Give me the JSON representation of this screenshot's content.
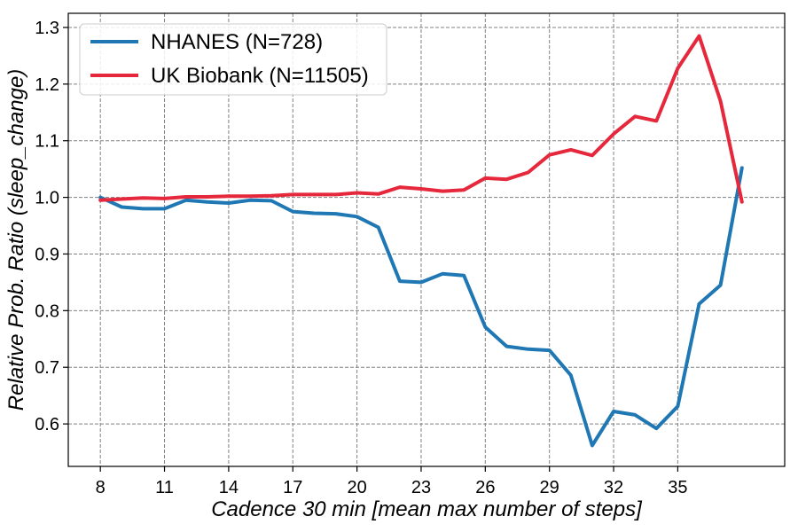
{
  "chart_data": {
    "type": "line",
    "xlabel": "Cadence 30 min [mean max number of steps]",
    "ylabel": "Relative Prob. Ratio (sleep_change)",
    "xlim": [
      6.5,
      40
    ],
    "ylim": [
      0.525,
      1.325
    ],
    "x_ticks": [
      8,
      11,
      14,
      17,
      20,
      23,
      26,
      29,
      32,
      35
    ],
    "y_ticks": [
      0.6,
      0.7,
      0.8,
      0.9,
      1.0,
      1.1,
      1.2,
      1.3
    ],
    "y_tick_labels": [
      "0.6",
      "0.7",
      "0.8",
      "0.9",
      "1.0",
      "1.1",
      "1.2",
      "1.3"
    ],
    "grid": true,
    "legend_position": "top-left",
    "series": [
      {
        "name": "NHANES (N=728)",
        "color": "#1f77b4",
        "x": [
          8,
          9,
          10,
          11,
          12,
          13,
          14,
          15,
          16,
          17,
          18,
          19,
          20,
          21,
          22,
          23,
          24,
          25,
          26,
          27,
          28,
          29,
          30,
          31,
          32,
          33,
          34,
          35,
          36,
          37,
          38
        ],
        "y": [
          1.0,
          0.983,
          0.98,
          0.98,
          0.995,
          0.992,
          0.99,
          0.995,
          0.994,
          0.975,
          0.972,
          0.971,
          0.966,
          0.947,
          0.852,
          0.85,
          0.865,
          0.862,
          0.771,
          0.737,
          0.732,
          0.73,
          0.686,
          0.562,
          0.622,
          0.616,
          0.592,
          0.631,
          0.812,
          0.845,
          1.052
        ]
      },
      {
        "name": "UK Biobank (N=11505)",
        "color": "#e6283c",
        "x": [
          8,
          9,
          10,
          11,
          12,
          13,
          14,
          15,
          16,
          17,
          18,
          19,
          20,
          21,
          22,
          23,
          24,
          25,
          26,
          27,
          28,
          29,
          30,
          31,
          32,
          33,
          34,
          35,
          36,
          37,
          38
        ],
        "y": [
          0.995,
          0.997,
          0.999,
          0.998,
          1.001,
          1.001,
          1.002,
          1.002,
          1.003,
          1.005,
          1.005,
          1.005,
          1.008,
          1.006,
          1.018,
          1.015,
          1.011,
          1.013,
          1.034,
          1.032,
          1.044,
          1.075,
          1.084,
          1.074,
          1.112,
          1.143,
          1.135,
          1.228,
          1.285,
          1.17,
          0.992
        ]
      }
    ]
  }
}
